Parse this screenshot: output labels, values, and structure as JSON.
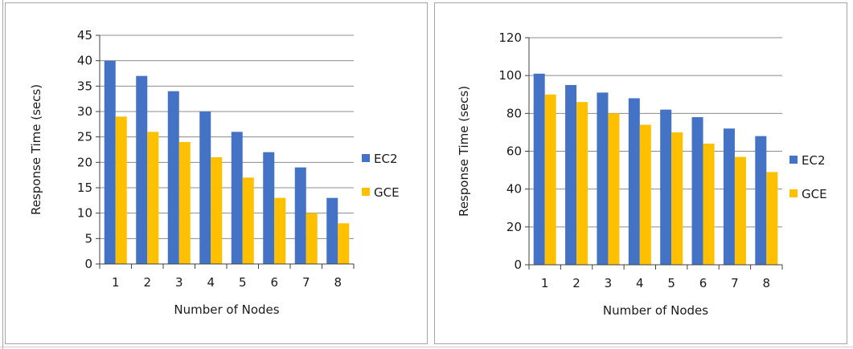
{
  "colors": {
    "ec2": "#4472c4",
    "gce": "#ffc000",
    "grid": "#8c8c8c",
    "axis": "#404040"
  },
  "chart_data": [
    {
      "type": "bar",
      "categories": [
        "1",
        "2",
        "3",
        "4",
        "5",
        "6",
        "7",
        "8"
      ],
      "series": [
        {
          "name": "EC2",
          "values": [
            40,
            37,
            34,
            30,
            26,
            22,
            19,
            13
          ]
        },
        {
          "name": "GCE",
          "values": [
            29,
            26,
            24,
            21,
            17,
            13,
            10,
            8
          ]
        }
      ],
      "title": "",
      "xlabel": "Number  of Nodes",
      "ylabel": "Response Time (secs)",
      "ylim": [
        0,
        45
      ],
      "yticks": [
        0,
        5,
        10,
        15,
        20,
        25,
        30,
        35,
        40,
        45
      ],
      "grid": true,
      "legend": "right"
    },
    {
      "type": "bar",
      "categories": [
        "1",
        "2",
        "3",
        "4",
        "5",
        "6",
        "7",
        "8"
      ],
      "series": [
        {
          "name": "EC2",
          "values": [
            101,
            95,
            91,
            88,
            82,
            78,
            72,
            68
          ]
        },
        {
          "name": "GCE",
          "values": [
            90,
            86,
            80,
            74,
            70,
            64,
            57,
            49
          ]
        }
      ],
      "title": "",
      "xlabel": "Number  of Nodes",
      "ylabel": "Response Time (secs)",
      "ylim": [
        0,
        120
      ],
      "yticks": [
        0,
        20,
        40,
        60,
        80,
        100,
        120
      ],
      "grid": true,
      "legend": "right"
    }
  ]
}
